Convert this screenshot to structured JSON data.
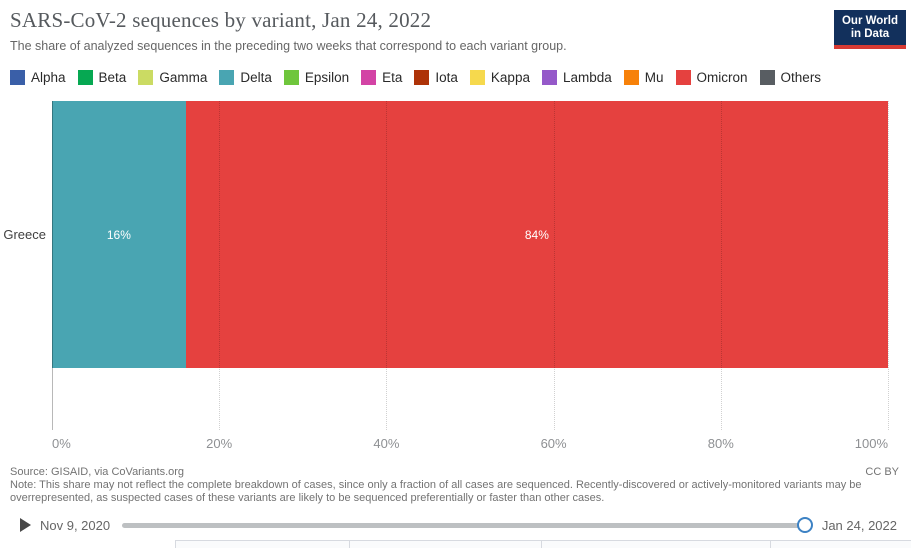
{
  "header": {
    "title": "SARS-CoV-2 sequences by variant, Jan 24, 2022",
    "subtitle": "The share of analyzed sequences in the preceding two weeks that correspond to each variant group.",
    "logo": {
      "line1": "Our World",
      "line2": "in Data",
      "bg_color": "#12305c",
      "accent_color": "#d73a33"
    }
  },
  "legend": {
    "items": [
      {
        "label": "Alpha",
        "color": "#3a5fa8"
      },
      {
        "label": "Beta",
        "color": "#06a852"
      },
      {
        "label": "Gamma",
        "color": "#cbdb63"
      },
      {
        "label": "Delta",
        "color": "#49a5b2"
      },
      {
        "label": "Epsilon",
        "color": "#6fc63c"
      },
      {
        "label": "Eta",
        "color": "#d343a5"
      },
      {
        "label": "Iota",
        "color": "#ae3308"
      },
      {
        "label": "Kappa",
        "color": "#f6d94d"
      },
      {
        "label": "Lambda",
        "color": "#9559c9"
      },
      {
        "label": "Mu",
        "color": "#f78109"
      },
      {
        "label": "Omicron",
        "color": "#e5413f"
      },
      {
        "label": "Others",
        "color": "#585d62"
      }
    ]
  },
  "chart_data": {
    "type": "bar",
    "orientation": "horizontal",
    "stacked": true,
    "categories": [
      "Greece"
    ],
    "series": [
      {
        "name": "Delta",
        "values": [
          16
        ],
        "color": "#49a5b2",
        "data_label": "16%"
      },
      {
        "name": "Omicron",
        "values": [
          84
        ],
        "color": "#e5413f",
        "data_label": "84%"
      }
    ],
    "x_ticks": [
      {
        "value": 0,
        "label": "0%"
      },
      {
        "value": 20,
        "label": "20%"
      },
      {
        "value": 40,
        "label": "40%"
      },
      {
        "value": 60,
        "label": "60%"
      },
      {
        "value": 80,
        "label": "80%"
      },
      {
        "value": 100,
        "label": "100%"
      }
    ],
    "xlim": [
      0,
      100
    ],
    "grid": "vertical-dotted",
    "legend_position": "top"
  },
  "footer": {
    "source": "Source: GISAID, via CoVariants.org",
    "license": "CC BY",
    "note": "Note: This share may not reflect the complete breakdown of cases, since only a fraction of all cases are sequenced. Recently-discovered or actively-monitored variants may be overrepresented, as suspected cases of these variants are likely to be sequenced preferentially or faster than other cases."
  },
  "timeline": {
    "start_label": "Nov 9, 2020",
    "end_label": "Jan 24, 2022",
    "handle_color": "#3d82c4"
  }
}
